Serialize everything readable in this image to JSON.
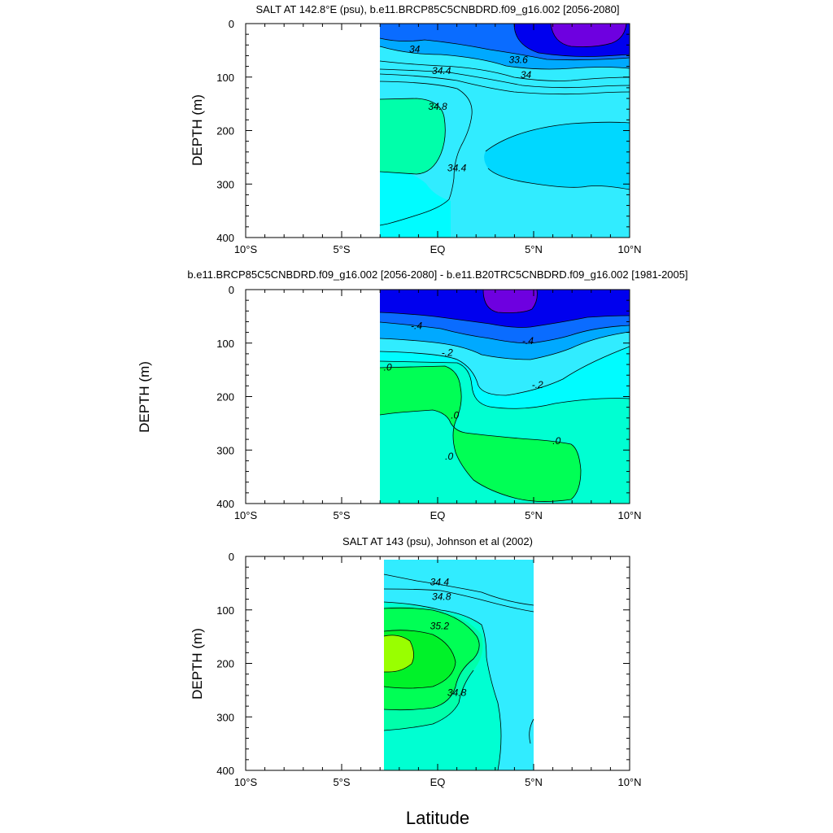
{
  "colors": {
    "blue_dark": "#0000ee",
    "blue_mid": "#0a6cff",
    "blue_light": "#00a9ff",
    "cyan_mid": "#00d8ff",
    "cyan": "#31ecff",
    "cyan_pale": "#00fcff",
    "aqua": "#00ffd2",
    "aqua_green": "#00ffaa",
    "green": "#00ff55",
    "lime": "#00f229",
    "yellow_green": "#99ff00",
    "violet": "#6e00e0",
    "contour_line": "#000000"
  },
  "chart_data": [
    {
      "type": "contour",
      "title": "SALT AT 142.8°E (psu), b.e11.BRCP85C5CNBDRD.f09_g16.002 [2056-2080]",
      "xlabel": "",
      "ylabel": "DEPTH (m)",
      "xlim": [
        -10,
        10
      ],
      "ylim": [
        400,
        0
      ],
      "x_ticks": [
        "10°S",
        "5°S",
        "EQ",
        "5°N",
        "10°N"
      ],
      "y_ticks": [
        "0",
        "100",
        "200",
        "300",
        "400"
      ],
      "data_extent": {
        "lat": [
          -3,
          10
        ],
        "depth": [
          0,
          400
        ]
      },
      "contour_labels": [
        {
          "text": "34",
          "lat": -1.2,
          "depth": 48
        },
        {
          "text": "33.6",
          "lat": 4.2,
          "depth": 68
        },
        {
          "text": "34",
          "lat": 4.6,
          "depth": 96
        },
        {
          "text": "34.4",
          "lat": 0.2,
          "depth": 88
        },
        {
          "text": "34.8",
          "lat": 0.0,
          "depth": 155
        },
        {
          "text": "34.4",
          "lat": 1.0,
          "depth": 270
        }
      ]
    },
    {
      "type": "contour",
      "title": "b.e11.BRCP85C5CNBDRD.f09_g16.002 [2056-2080] - b.e11.B20TRC5CNBDRD.f09_g16.002 [1981-2005]",
      "xlabel": "",
      "ylabel": "DEPTH (m)",
      "xlim": [
        -10,
        10
      ],
      "ylim": [
        400,
        0
      ],
      "x_ticks": [
        "10°S",
        "5°S",
        "EQ",
        "5°N",
        "10°N"
      ],
      "y_ticks": [
        "0",
        "100",
        "200",
        "300",
        "400"
      ],
      "data_extent": {
        "lat": [
          -3,
          10
        ],
        "depth": [
          0,
          400
        ]
      },
      "contour_labels": [
        {
          "text": "-.4",
          "lat": -1.1,
          "depth": 68
        },
        {
          "text": "-.4",
          "lat": 4.7,
          "depth": 96
        },
        {
          "text": "-.2",
          "lat": 0.5,
          "depth": 118
        },
        {
          "text": "-.2",
          "lat": 5.2,
          "depth": 178
        },
        {
          "text": ".0",
          "lat": -2.6,
          "depth": 145
        },
        {
          "text": ".0",
          "lat": 0.9,
          "depth": 235
        },
        {
          "text": ".0",
          "lat": 0.6,
          "depth": 312
        },
        {
          "text": ".0",
          "lat": 6.2,
          "depth": 283
        }
      ]
    },
    {
      "type": "contour",
      "title": "SALT AT 143 (psu), Johnson et al (2002)",
      "xlabel": "Latitude",
      "ylabel": "DEPTH (m)",
      "xlim": [
        -10,
        10
      ],
      "ylim": [
        400,
        0
      ],
      "x_ticks": [
        "10°S",
        "5°S",
        "EQ",
        "5°N",
        "10°N"
      ],
      "y_ticks": [
        "0",
        "100",
        "200",
        "300",
        "400"
      ],
      "data_extent": {
        "lat": [
          -2.8,
          4.9
        ],
        "depth": [
          0,
          400
        ]
      },
      "contour_labels": [
        {
          "text": "34.4",
          "lat": 0.1,
          "depth": 48
        },
        {
          "text": "34.8",
          "lat": 0.2,
          "depth": 75
        },
        {
          "text": "35.2",
          "lat": 0.1,
          "depth": 130
        },
        {
          "text": "34.8",
          "lat": 1.0,
          "depth": 255
        }
      ]
    }
  ]
}
